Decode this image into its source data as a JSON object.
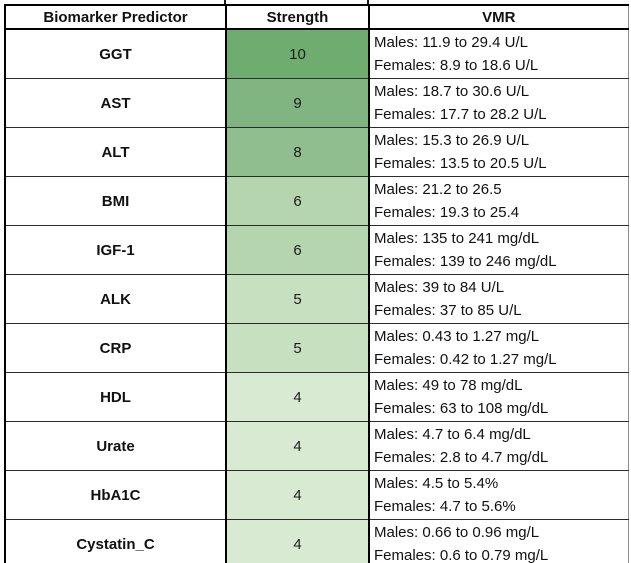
{
  "chart_data": {
    "type": "table",
    "columns": [
      "Biomarker Predictor",
      "Strength",
      "VMR"
    ],
    "rows": [
      {
        "biomarker": "GGT",
        "strength": 10,
        "vmr_males": "Males: 11.9 to 29.4 U/L",
        "vmr_females": "Females: 8.9 to 18.6 U/L",
        "strength_cell_color": "#6FAC6F"
      },
      {
        "biomarker": "AST",
        "strength": 9,
        "vmr_males": "Males: 18.7 to 30.6 U/L",
        "vmr_females": "Females: 17.7 to 28.2 U/L",
        "strength_cell_color": "#80B480"
      },
      {
        "biomarker": "ALT",
        "strength": 8,
        "vmr_males": "Males: 15.3 to 26.9 U/L",
        "vmr_females": "Females: 13.5 to 20.5 U/L",
        "strength_cell_color": "#90BE8E"
      },
      {
        "biomarker": "BMI",
        "strength": 6,
        "vmr_males": "Males: 21.2 to 26.5",
        "vmr_females": "Females: 19.3 to 25.4",
        "strength_cell_color": "#B5D5AF"
      },
      {
        "biomarker": "IGF-1",
        "strength": 6,
        "vmr_males": "Males: 135 to 241 mg/dL",
        "vmr_females": "Females: 139 to 246 mg/dL",
        "strength_cell_color": "#B5D5AF"
      },
      {
        "biomarker": "ALK",
        "strength": 5,
        "vmr_males": "Males: 39 to 84 U/L",
        "vmr_females": "Females: 37 to 85 U/L",
        "strength_cell_color": "#C7E0C0"
      },
      {
        "biomarker": "CRP",
        "strength": 5,
        "vmr_males": "Males: 0.43 to 1.27 mg/L",
        "vmr_females": "Females: 0.42 to 1.27 mg/L",
        "strength_cell_color": "#C7E0C0"
      },
      {
        "biomarker": "HDL",
        "strength": 4,
        "vmr_males": "Males: 49 to 78 mg/dL",
        "vmr_females": "Females: 63 to 108 mg/dL",
        "strength_cell_color": "#D8EAD1"
      },
      {
        "biomarker": "Urate",
        "strength": 4,
        "vmr_males": "Males: 4.7 to 6.4 mg/dL",
        "vmr_females": "Females: 2.8 to 4.7 mg/dL",
        "strength_cell_color": "#D8EAD1"
      },
      {
        "biomarker": "HbA1C",
        "strength": 4,
        "vmr_males": "Males: 4.5 to 5.4%",
        "vmr_females": "Females: 4.7 to 5.6%",
        "strength_cell_color": "#D8EAD1"
      },
      {
        "biomarker": "Cystatin_C",
        "strength": 4,
        "vmr_males": "Males: 0.66 to 0.96 mg/L",
        "vmr_females": "Females: 0.6 to 0.79 mg/L",
        "strength_cell_color": "#D8EAD1"
      }
    ],
    "strength_color_scale": {
      "min_value": 4,
      "max_value": 10,
      "min_color": "#D8EAD1",
      "max_color": "#6FAC6F"
    },
    "layout": {
      "grid": "all-borders",
      "header_bold": true,
      "biomarker_column_bold": true
    }
  }
}
